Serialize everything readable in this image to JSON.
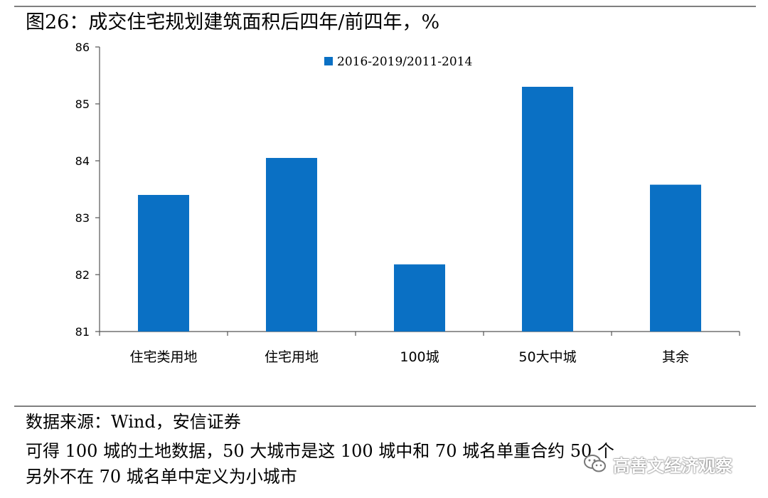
{
  "title": "图26：成交住宅规划建筑面积后四年/前四年，%",
  "chart_data": {
    "type": "bar",
    "categories": [
      "住宅类用地",
      "住宅用地",
      "100城",
      "50大中城",
      "其余"
    ],
    "series": [
      {
        "name": "2016-2019/2011-2014",
        "values": [
          83.4,
          84.05,
          82.18,
          85.3,
          83.58
        ],
        "color": "#0a70c4"
      }
    ],
    "ylim": [
      81,
      86
    ],
    "yticks": [
      "81",
      "82",
      "83",
      "84",
      "85",
      "86"
    ],
    "legend_position": "top",
    "grid": false
  },
  "notes": {
    "source": "数据来源：Wind，安信证券",
    "line2": "可得 100 城的土地数据，50 大城市是这 100 城中和 70 城名单重合约 50 个",
    "line3": "另外不在 70 城名单中定义为小城市"
  },
  "watermark": {
    "text": "高善文经济观察",
    "icon": "wechat-icon"
  }
}
